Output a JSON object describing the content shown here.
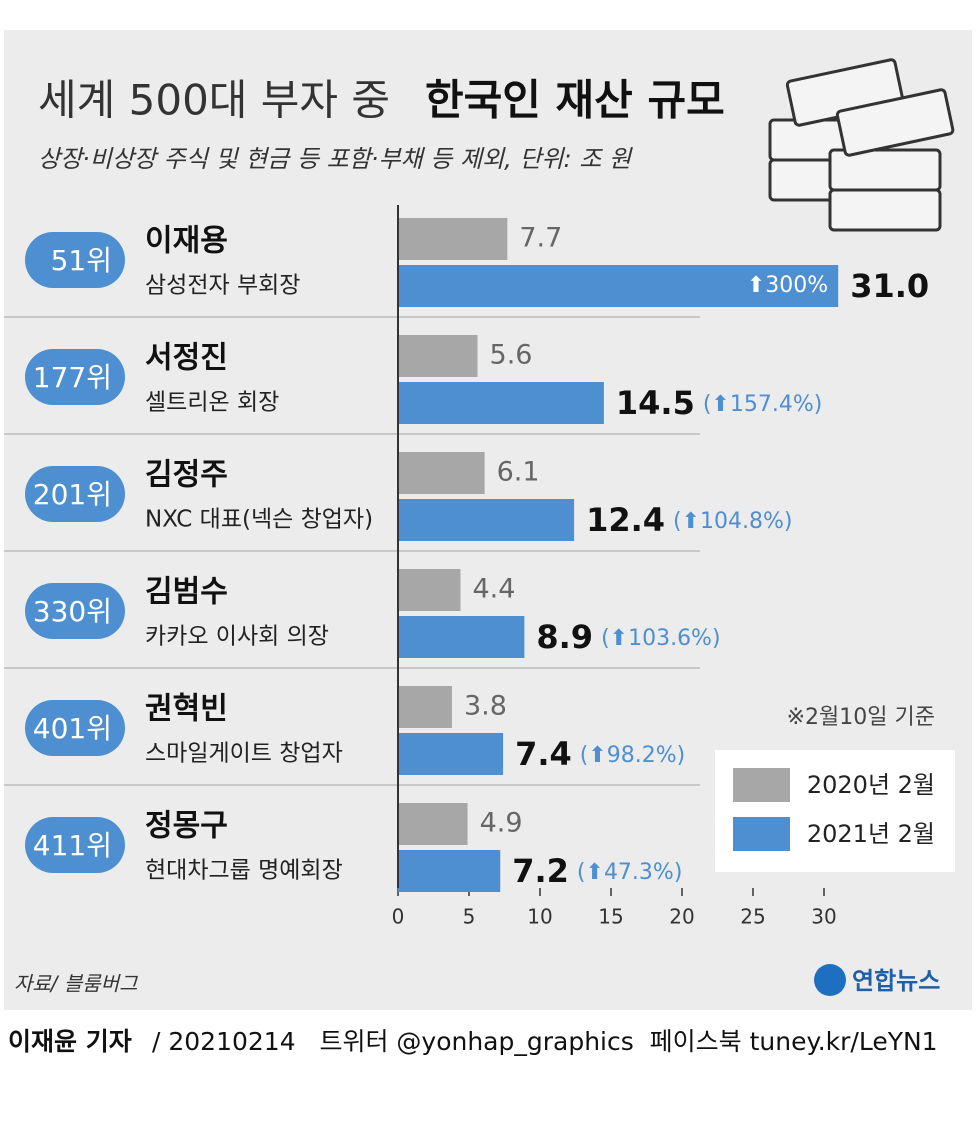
{
  "chart_data": {
    "type": "grouped-hbar",
    "title": "세계 500대 부자 중",
    "title_bold": "한국인 재산 규모",
    "subtitle": "상장·비상장 주식 및 현금 등 포함·부채 등 제외, 단위: 조 원",
    "categories": [
      "이재용",
      "서정진",
      "김정주",
      "김범수",
      "권혁빈",
      "정몽구"
    ],
    "ranks": [
      "51위",
      "177위",
      "201위",
      "330위",
      "401위",
      "411위"
    ],
    "roles": [
      "삼성전자 부회장",
      "셀트리온 회장",
      "NXC 대표(넥슨 창업자)",
      "카카오 이사회 의장",
      "스마일게이트 창업자",
      "현대차그룹 명예회장"
    ],
    "series": [
      {
        "name": "2020년 2월",
        "color": "#a8a7a7",
        "values": [
          7.7,
          5.6,
          6.1,
          4.4,
          3.8,
          4.9
        ]
      },
      {
        "name": "2021년 2월",
        "color": "#4d8fd0",
        "values": [
          31.0,
          14.5,
          12.4,
          8.9,
          7.4,
          7.2
        ],
        "value_labels": [
          "31.0",
          "14.5",
          "12.4",
          "8.9",
          "7.4",
          "7.2"
        ],
        "change_labels": [
          "⬆300%",
          "(⬆157.4%)",
          "(⬆104.8%)",
          "(⬆103.6%)",
          "(⬆98.2%)",
          "(⬆47.3%)"
        ]
      }
    ],
    "xlim": [
      0,
      30
    ],
    "xticks": [
      0,
      5,
      10,
      15,
      20,
      25,
      30
    ],
    "note": "※2월10일 기준",
    "source": "자료/ 블룸버그",
    "logo": "연합뉴스",
    "footer_reporter": "이재윤 기자",
    "footer_rest": "/ 20210214   트위터 @yonhap_graphics  페이스북 tuney.kr/LeYN1"
  }
}
